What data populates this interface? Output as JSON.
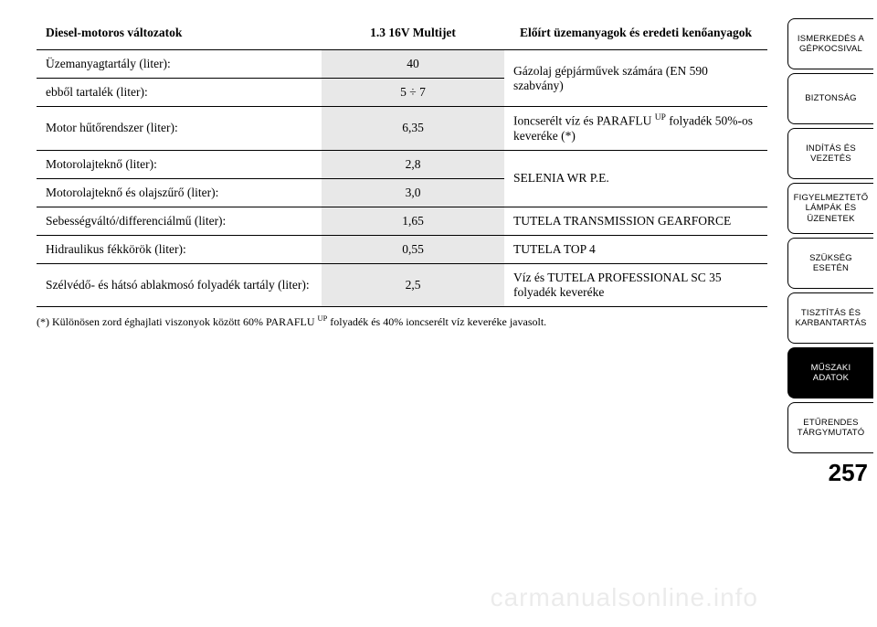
{
  "table": {
    "headers": {
      "col1": "Diesel-motoros változatok",
      "col2": "1.3 16V Multijet",
      "col3": "Előírt üzemanyagok és eredeti kenőanyagok"
    },
    "rows": [
      {
        "label": "Üzemanyagtartály (liter):",
        "value": "40",
        "fluid": "Gázolaj gépjárművek számára (EN 590 szabvány)",
        "fluid_rowspan": 2
      },
      {
        "label": "ebből tartalék (liter):",
        "value": "5 ÷ 7"
      },
      {
        "label": "Motor hűtőrendszer (liter):",
        "value": "6,35",
        "fluid_html": "Ioncserélt víz és PARAFLU <sup>UP</sup> folyadék 50%-os keveréke (*)"
      },
      {
        "label": "Motorolajteknő (liter):",
        "value": "2,8",
        "fluid": "SELENIA WR P.E.",
        "fluid_rowspan": 2
      },
      {
        "label": "Motorolajteknő és olajszűrő (liter):",
        "value": "3,0"
      },
      {
        "label": "Sebességváltó/differenciálmű (liter):",
        "value": "1,65",
        "fluid": "TUTELA TRANSMISSION GEARFORCE"
      },
      {
        "label": "Hidraulikus fékkörök (liter):",
        "value": "0,55",
        "fluid": "TUTELA TOP 4"
      },
      {
        "label": "Szélvédő- és hátsó ablakmosó folyadék tartály (liter):",
        "value": "2,5",
        "fluid": "Víz és TUTELA PROFESSIONAL SC 35 folyadék keveréke"
      }
    ]
  },
  "footnote_html": "(*) Különösen zord éghajlati viszonyok között 60% PARAFLU <sup>UP</sup> folyadék és 40% ioncserélt víz keveréke javasolt.",
  "sidebar": {
    "tabs": [
      {
        "label": "ISMERKEDÉS A GÉPKOCSIVAL",
        "active": false
      },
      {
        "label": "BIZTONSÁG",
        "active": false
      },
      {
        "label": "INDÍTÁS ÉS VEZETÉS",
        "active": false
      },
      {
        "label": "FIGYELMEZTETŐ LÁMPÁK ÉS ÜZENETEK",
        "active": false
      },
      {
        "label": "SZÜKSÉG ESETÉN",
        "active": false
      },
      {
        "label": "TISZTÍTÁS ÉS KARBANTARTÁS",
        "active": false
      },
      {
        "label": "MŰSZAKI ADATOK",
        "active": true
      },
      {
        "label": "ETŰRENDES TÁRGYMUTATÓ",
        "active": false
      }
    ]
  },
  "page_number": "257",
  "watermark": "carmanualsonline.info",
  "styles": {
    "page_bg": "#ffffff",
    "shaded_col_bg": "#e8e8e8",
    "border_color": "#000000",
    "active_tab_bg": "#000000",
    "active_tab_fg": "#ffffff",
    "body_font_size": 13.5,
    "footnote_font_size": 12,
    "tab_font_size": 9.5,
    "page_number_font_size": 26
  }
}
